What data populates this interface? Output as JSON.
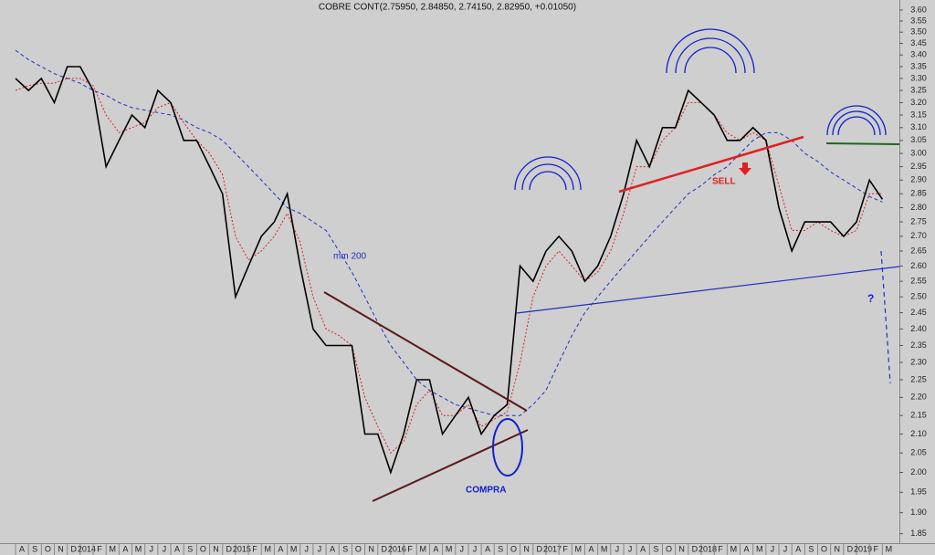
{
  "chart_data": {
    "type": "line",
    "title": "COBRE CONT(2.75950, 2.84850, 2.74150, 2.82950, +0.01050)",
    "log_scale": true,
    "categories": [
      "A",
      "S",
      "O",
      "N",
      "D",
      "2014",
      "F",
      "M",
      "A",
      "M",
      "J",
      "J",
      "A",
      "S",
      "O",
      "N",
      "D",
      "2015",
      "F",
      "M",
      "A",
      "M",
      "J",
      "J",
      "A",
      "S",
      "O",
      "N",
      "D",
      "2016",
      "F",
      "M",
      "A",
      "M",
      "J",
      "J",
      "A",
      "S",
      "O",
      "N",
      "D",
      "2017",
      "F",
      "M",
      "A",
      "M",
      "J",
      "J",
      "A",
      "S",
      "O",
      "N",
      "D",
      "2018",
      "F",
      "M",
      "A",
      "M",
      "J",
      "J",
      "A",
      "S",
      "O",
      "N",
      "D",
      "2019",
      "F",
      "M"
    ],
    "series": [
      {
        "color": "#000000",
        "dash": "solid",
        "values": [
          3.3,
          3.25,
          3.3,
          3.2,
          3.35,
          3.35,
          3.25,
          2.95,
          3.05,
          3.15,
          3.1,
          3.25,
          3.2,
          3.05,
          3.05,
          2.95,
          2.85,
          2.5,
          2.6,
          2.7,
          2.75,
          2.85,
          2.6,
          2.4,
          2.35,
          2.35,
          2.35,
          2.1,
          2.1,
          2.0,
          2.1,
          2.25,
          2.25,
          2.1,
          2.15,
          2.2,
          2.1,
          2.15,
          2.18,
          2.6,
          2.55,
          2.65,
          2.7,
          2.65,
          2.55,
          2.6,
          2.7,
          2.85,
          3.05,
          2.95,
          3.1,
          3.1,
          3.25,
          3.2,
          3.15,
          3.05,
          3.05,
          3.1,
          3.05,
          2.8,
          2.65,
          2.75,
          2.75,
          2.75,
          2.7,
          2.75,
          2.9,
          2.83
        ]
      },
      {
        "color": "#e02020",
        "dash": "dotted",
        "values": [
          3.25,
          3.27,
          3.28,
          3.28,
          3.3,
          3.3,
          3.27,
          3.15,
          3.08,
          3.1,
          3.12,
          3.18,
          3.2,
          3.12,
          3.05,
          3.0,
          2.92,
          2.7,
          2.62,
          2.65,
          2.7,
          2.78,
          2.68,
          2.5,
          2.4,
          2.38,
          2.35,
          2.2,
          2.12,
          2.05,
          2.08,
          2.18,
          2.22,
          2.15,
          2.15,
          2.18,
          2.12,
          2.14,
          2.16,
          2.3,
          2.5,
          2.6,
          2.65,
          2.6,
          2.55,
          2.58,
          2.65,
          2.78,
          2.95,
          2.95,
          3.05,
          3.1,
          3.2,
          3.2,
          3.15,
          3.08,
          3.05,
          3.08,
          3.05,
          2.88,
          2.72,
          2.72,
          2.75,
          2.72,
          2.7,
          2.72,
          2.85,
          2.85
        ]
      },
      {
        "color": "#2030c0",
        "dash": "dashed",
        "values": [
          3.42,
          3.38,
          3.35,
          3.32,
          3.3,
          3.28,
          3.25,
          3.23,
          3.2,
          3.18,
          3.17,
          3.16,
          3.15,
          3.13,
          3.1,
          3.08,
          3.05,
          3.0,
          2.95,
          2.9,
          2.85,
          2.8,
          2.78,
          2.75,
          2.72,
          2.65,
          2.58,
          2.5,
          2.42,
          2.35,
          2.3,
          2.25,
          2.22,
          2.2,
          2.18,
          2.17,
          2.16,
          2.15,
          2.15,
          2.15,
          2.18,
          2.22,
          2.3,
          2.38,
          2.45,
          2.5,
          2.55,
          2.6,
          2.65,
          2.7,
          2.75,
          2.8,
          2.85,
          2.88,
          2.92,
          2.95,
          3.0,
          3.05,
          3.08,
          3.08,
          3.05,
          3.0,
          2.97,
          2.93,
          2.9,
          2.87,
          2.84,
          2.82
        ]
      }
    ],
    "ylim": [
      1.828,
      3.646
    ],
    "yticks": [
      {
        "value": 1.85,
        "label": "1.85"
      },
      {
        "value": 1.9,
        "label": "1.90"
      },
      {
        "value": 1.95,
        "label": "1.95"
      },
      {
        "value": 2,
        "label": "2.00"
      },
      {
        "value": 2.05,
        "label": "2.05"
      },
      {
        "value": 2.1,
        "label": "2.10"
      },
      {
        "value": 2.15,
        "label": "2.15"
      },
      {
        "value": 2.2,
        "label": "2.20"
      },
      {
        "value": 2.25,
        "label": "2.25"
      },
      {
        "value": 2.3,
        "label": "2.30"
      },
      {
        "value": 2.35,
        "label": "2.35"
      },
      {
        "value": 2.4,
        "label": "2.40"
      },
      {
        "value": 2.45,
        "label": "2.45"
      },
      {
        "value": 2.5,
        "label": "2.50"
      },
      {
        "value": 2.55,
        "label": "2.55"
      },
      {
        "value": 2.6,
        "label": "2.60"
      },
      {
        "value": 2.65,
        "label": "2.65"
      },
      {
        "value": 2.7,
        "label": "2.70"
      },
      {
        "value": 2.75,
        "label": "2.75"
      },
      {
        "value": 2.8,
        "label": "2.80"
      },
      {
        "value": 2.85,
        "label": "2.85"
      },
      {
        "value": 2.9,
        "label": "2.90"
      },
      {
        "value": 2.95,
        "label": "2.95"
      },
      {
        "value": 3,
        "label": "3.00"
      },
      {
        "value": 3.05,
        "label": "3.05"
      },
      {
        "value": 3.1,
        "label": "3.10"
      },
      {
        "value": 3.15,
        "label": "3.15"
      },
      {
        "value": 3.2,
        "label": "3.20"
      },
      {
        "value": 3.25,
        "label": "3.25"
      },
      {
        "value": 3.3,
        "label": "3.30"
      },
      {
        "value": 3.35,
        "label": "3.35"
      },
      {
        "value": 3.4,
        "label": "3.40"
      },
      {
        "value": 3.45,
        "label": "3.45"
      },
      {
        "value": 3.5,
        "label": "3.50"
      },
      {
        "value": 3.55,
        "label": "3.55"
      },
      {
        "value": 3.6,
        "label": "3.60"
      }
    ],
    "annotations": {
      "ma": "mm 200",
      "sell": "SELL",
      "buy": "COMPRA",
      "question": "?"
    }
  }
}
